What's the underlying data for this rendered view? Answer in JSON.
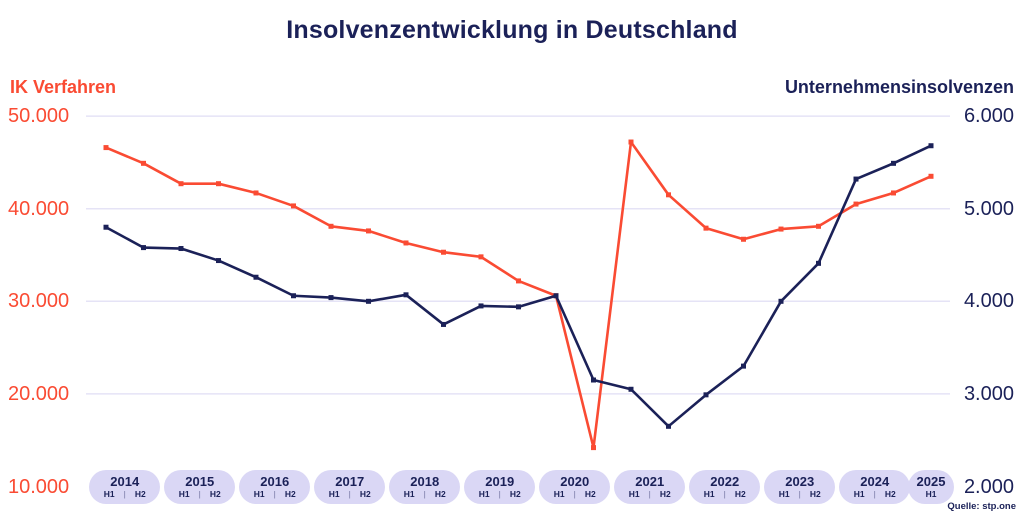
{
  "title": "Insolvenzentwicklung in Deutschland",
  "source": "Quelle: stp.one",
  "left_axis": {
    "label": "IK Verfahren",
    "color": "#FA4B33",
    "ticks": [
      "50.000",
      "40.000",
      "30.000",
      "20.000",
      "10.000"
    ]
  },
  "right_axis": {
    "label": "Unternehmensinsolvenzen",
    "color": "#1B2158",
    "ticks": [
      "6.000",
      "5.000",
      "4.000",
      "3.000",
      "2.000"
    ]
  },
  "x_axis": {
    "years": [
      {
        "year": "2014",
        "halves": [
          "H1",
          "H2"
        ]
      },
      {
        "year": "2015",
        "halves": [
          "H1",
          "H2"
        ]
      },
      {
        "year": "2016",
        "halves": [
          "H1",
          "H2"
        ]
      },
      {
        "year": "2017",
        "halves": [
          "H1",
          "H2"
        ]
      },
      {
        "year": "2018",
        "halves": [
          "H1",
          "H2"
        ]
      },
      {
        "year": "2019",
        "halves": [
          "H1",
          "H2"
        ]
      },
      {
        "year": "2020",
        "halves": [
          "H1",
          "H2"
        ]
      },
      {
        "year": "2021",
        "halves": [
          "H1",
          "H2"
        ]
      },
      {
        "year": "2022",
        "halves": [
          "H1",
          "H2"
        ]
      },
      {
        "year": "2023",
        "halves": [
          "H1",
          "H2"
        ]
      },
      {
        "year": "2024",
        "halves": [
          "H1",
          "H2"
        ]
      },
      {
        "year": "2025",
        "halves": [
          "H1"
        ]
      }
    ]
  },
  "chart_data": {
    "type": "line",
    "title": "Insolvenzentwicklung in Deutschland",
    "x": [
      "2014 H1",
      "2014 H2",
      "2015 H1",
      "2015 H2",
      "2016 H1",
      "2016 H2",
      "2017 H1",
      "2017 H2",
      "2018 H1",
      "2018 H2",
      "2019 H1",
      "2019 H2",
      "2020 H1",
      "2020 H2",
      "2021 H1",
      "2021 H2",
      "2022 H1",
      "2022 H2",
      "2023 H1",
      "2023 H2",
      "2024 H1",
      "2024 H2",
      "2025 H1"
    ],
    "series": [
      {
        "name": "IK Verfahren",
        "axis": "left",
        "color": "#FA4B33",
        "values": [
          46600,
          44900,
          42700,
          42700,
          41700,
          40300,
          38100,
          37600,
          36300,
          35300,
          34800,
          32200,
          30600,
          14200,
          47200,
          41500,
          37900,
          36700,
          37800,
          38100,
          40500,
          41700,
          43500
        ]
      },
      {
        "name": "Unternehmensinsolvenzen",
        "axis": "right",
        "color": "#1B2158",
        "values": [
          4800,
          4580,
          4570,
          4440,
          4260,
          4060,
          4040,
          4000,
          4070,
          3750,
          3950,
          3940,
          4060,
          3150,
          3050,
          2650,
          2990,
          3300,
          4000,
          4410,
          5320,
          5490,
          5680
        ]
      }
    ],
    "left_ylim": [
      10000,
      50000
    ],
    "left_tick_step": 10000,
    "right_ylim": [
      2000,
      6000
    ],
    "right_tick_step": 1000,
    "grid": true,
    "gridline_color": "#E5E3F6",
    "legend_position": "axis headers top-left / top-right"
  }
}
